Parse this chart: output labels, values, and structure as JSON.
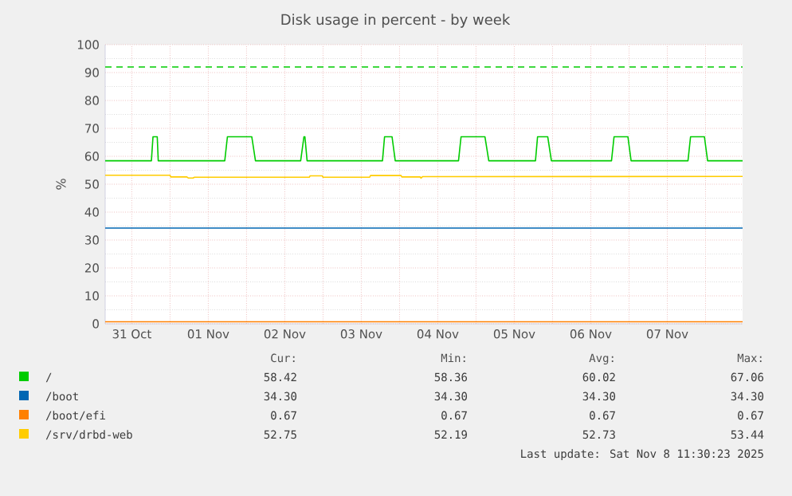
{
  "chart_data": {
    "type": "line",
    "title": "Disk usage in percent - by week",
    "ylabel": "%",
    "x": [
      "2025-10-31T03:39",
      "2025-10-31T18:09",
      "2025-10-31T18:39",
      "2025-10-31T19:59",
      "2025-10-31T20:18",
      "2025-11-01T17:10",
      "2025-11-01T18:00",
      "2025-11-02T01:39",
      "2025-11-02T02:48",
      "2025-11-02T16:59",
      "2025-11-02T18:00",
      "2025-11-02T18:19",
      "2025-11-02T19:00",
      "2025-11-03T18:39",
      "2025-11-03T19:18",
      "2025-11-03T21:39",
      "2025-11-03T22:39",
      "2025-11-04T18:30",
      "2025-11-04T19:18",
      "2025-11-05T02:48",
      "2025-11-05T04:00",
      "2025-11-05T18:39",
      "2025-11-05T19:18",
      "2025-11-05T22:30",
      "2025-11-05T23:39",
      "2025-11-06T18:30",
      "2025-11-06T19:18",
      "2025-11-06T23:39",
      "2025-11-07T00:39",
      "2025-11-07T18:30",
      "2025-11-07T19:18",
      "2025-11-07T23:39",
      "2025-11-08T00:39",
      "2025-11-08T11:38"
    ],
    "series": [
      {
        "name": "/",
        "color": "#00cc00",
        "values": [
          58.4,
          58.4,
          67,
          67,
          58.4,
          58.4,
          67,
          67,
          58.4,
          58.4,
          67,
          67,
          58.4,
          58.4,
          67,
          67,
          58.4,
          58.4,
          67,
          67,
          58.4,
          58.4,
          67,
          67,
          58.4,
          58.4,
          67,
          67,
          58.4,
          58.4,
          67,
          67,
          58.4,
          58.4
        ]
      },
      {
        "name": "/boot",
        "color": "#0066b3",
        "x": [
          "2025-10-31T03:39",
          "2025-11-08T11:38"
        ],
        "values": [
          34.3,
          34.3
        ]
      },
      {
        "name": "/boot/efi",
        "color": "#ff8000",
        "x": [
          "2025-10-31T03:39",
          "2025-11-08T11:38"
        ],
        "values": [
          0.7,
          0.7
        ]
      },
      {
        "name": "/srv/drbd-web",
        "color": "#ffcc00",
        "x": [
          "2025-10-31T03:39",
          "2025-11-01T00:00",
          "2025-11-01T00:14",
          "2025-11-01T05:17",
          "2025-11-01T05:46",
          "2025-11-01T07:12",
          "2025-11-01T07:41",
          "2025-11-02T19:41",
          "2025-11-02T19:55",
          "2025-11-02T23:46",
          "2025-11-03T00:00",
          "2025-11-03T14:38",
          "2025-11-03T14:53",
          "2025-11-04T00:29",
          "2025-11-04T00:43",
          "2025-11-04T06:29",
          "2025-11-04T06:43",
          "2025-11-04T07:12",
          "2025-11-08T11:38"
        ],
        "values": [
          53.2,
          53.2,
          52.6,
          52.6,
          52.2,
          52.2,
          52.5,
          52.5,
          53.0,
          53.0,
          52.5,
          52.5,
          53.1,
          53.1,
          52.6,
          52.6,
          52.2,
          52.7,
          52.8
        ]
      }
    ],
    "ref_lines": [
      {
        "axis": "y",
        "value": 92,
        "color": "#00cc00",
        "line_style": "dashed"
      }
    ],
    "xlim": [
      "2025-10-31T03:39",
      "2025-11-08T11:38"
    ],
    "xticks": [
      {
        "value": "2025-10-31T12:00",
        "label": "31 Oct"
      },
      {
        "value": "2025-11-01T00:00",
        "label": null
      },
      {
        "value": "2025-11-01T12:00",
        "label": "01 Nov"
      },
      {
        "value": "2025-11-02T00:00",
        "label": null
      },
      {
        "value": "2025-11-02T12:00",
        "label": "02 Nov"
      },
      {
        "value": "2025-11-03T00:00",
        "label": null
      },
      {
        "value": "2025-11-03T12:00",
        "label": "03 Nov"
      },
      {
        "value": "2025-11-04T00:00",
        "label": null
      },
      {
        "value": "2025-11-04T12:00",
        "label": "04 Nov"
      },
      {
        "value": "2025-11-05T00:00",
        "label": null
      },
      {
        "value": "2025-11-05T12:00",
        "label": "05 Nov"
      },
      {
        "value": "2025-11-06T00:00",
        "label": null
      },
      {
        "value": "2025-11-06T12:00",
        "label": "06 Nov"
      },
      {
        "value": "2025-11-07T00:00",
        "label": null
      },
      {
        "value": "2025-11-07T12:00",
        "label": "07 Nov"
      },
      {
        "value": "2025-11-08T00:00",
        "label": null
      }
    ],
    "ylim": [
      0,
      100
    ],
    "yticks": [
      0,
      10,
      20,
      30,
      40,
      50,
      60,
      70,
      80,
      90,
      100
    ],
    "grid": true,
    "legend": "bottom",
    "marker": "none",
    "line_style": "solid",
    "annotations": [
      "Cur:",
      "Min:",
      "Avg:",
      "Max:",
      "58.42",
      "58.36",
      "60.02",
      "67.06",
      "34.30",
      "34.30",
      "34.30",
      "34.30",
      "0.67",
      "0.67",
      "0.67",
      "0.67",
      "52.75",
      "52.19",
      "52.73",
      "53.44",
      "Last update: Sat Nov  8 11:30:23 2025"
    ]
  }
}
